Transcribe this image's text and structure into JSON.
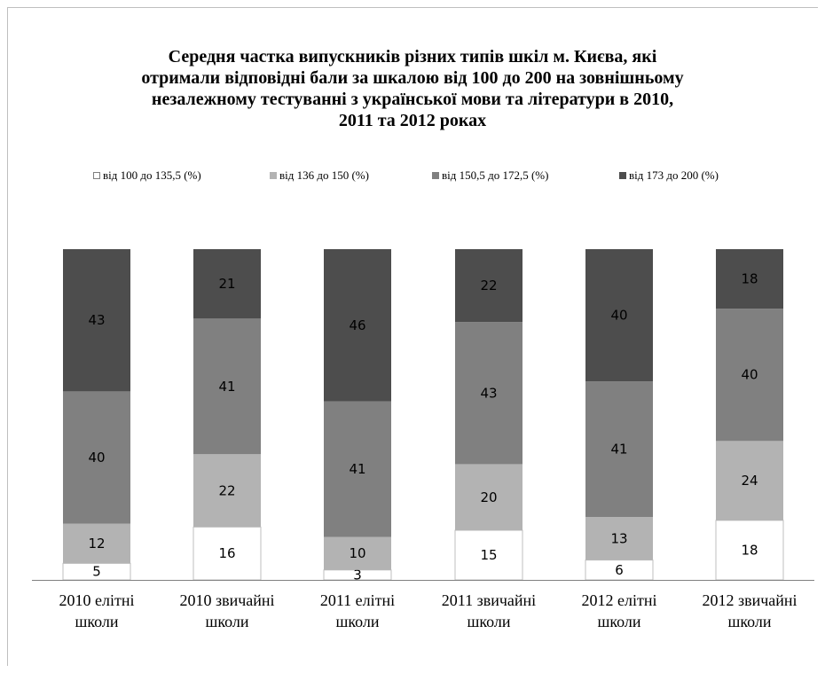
{
  "chart_data": {
    "type": "bar",
    "stacked": true,
    "title_lines": [
      "Середня частка випускників різних типів шкіл м. Києва, які",
      "отримали відповідні бали за шкалою від 100 до 200 на зовнішньому",
      "незалежному тестуванні з української мови та літератури в 2010,",
      "2011 та 2012 роках"
    ],
    "categories": [
      [
        "2010 елітні",
        "школи"
      ],
      [
        "2010 звичайні",
        "школи"
      ],
      [
        "2011 елітні",
        "школи"
      ],
      [
        "2011 звичайні",
        "школи"
      ],
      [
        "2012 елітні",
        "школи"
      ],
      [
        "2012 звичайні",
        "школи"
      ]
    ],
    "series": [
      {
        "name": "від 100 до 135,5 (%)",
        "color": "#ffffff",
        "label_color": "#000000",
        "values": [
          5,
          16,
          3,
          15,
          6,
          18
        ]
      },
      {
        "name": "від 136 до 150  (%)",
        "color": "#b3b3b3",
        "label_color": "#000000",
        "values": [
          12,
          22,
          10,
          20,
          13,
          24
        ]
      },
      {
        "name": "від 150,5 до 172,5  (%)",
        "color": "#808080",
        "label_color": "#000000",
        "values": [
          40,
          41,
          41,
          43,
          41,
          40
        ]
      },
      {
        "name": "від 173 до 200  (%)",
        "color": "#4d4d4d",
        "label_color": "#000000",
        "values": [
          43,
          21,
          46,
          22,
          40,
          18
        ]
      }
    ],
    "ylim": [
      0,
      100
    ],
    "legend_position": "top",
    "grid": false
  }
}
